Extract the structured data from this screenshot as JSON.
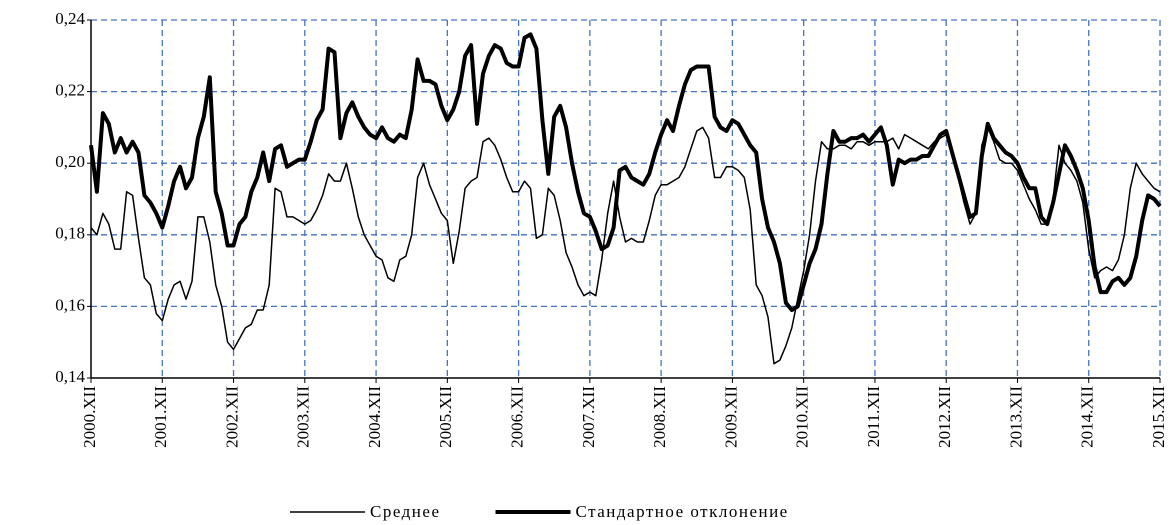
{
  "chart_data": {
    "type": "line",
    "categories": [
      "2000.XII",
      null,
      null,
      null,
      null,
      null,
      null,
      null,
      null,
      null,
      null,
      null,
      "2001.XII",
      null,
      null,
      null,
      null,
      null,
      null,
      null,
      null,
      null,
      null,
      null,
      "2002.XII",
      null,
      null,
      null,
      null,
      null,
      null,
      null,
      null,
      null,
      null,
      null,
      "2003.XII",
      null,
      null,
      null,
      null,
      null,
      null,
      null,
      null,
      null,
      null,
      null,
      "2004.XII",
      null,
      null,
      null,
      null,
      null,
      null,
      null,
      null,
      null,
      null,
      null,
      "2005.XII",
      null,
      null,
      null,
      null,
      null,
      null,
      null,
      null,
      null,
      null,
      null,
      "2006.XII",
      null,
      null,
      null,
      null,
      null,
      null,
      null,
      null,
      null,
      null,
      null,
      "2007.XII",
      null,
      null,
      null,
      null,
      null,
      null,
      null,
      null,
      null,
      null,
      null,
      "2008.XII",
      null,
      null,
      null,
      null,
      null,
      null,
      null,
      null,
      null,
      null,
      null,
      "2009.XII",
      null,
      null,
      null,
      null,
      null,
      null,
      null,
      null,
      null,
      null,
      null,
      "2010.XII",
      null,
      null,
      null,
      null,
      null,
      null,
      null,
      null,
      null,
      null,
      null,
      "2011.XII",
      null,
      null,
      null,
      null,
      null,
      null,
      null,
      null,
      null,
      null,
      null,
      "2012.XII",
      null,
      null,
      null,
      null,
      null,
      null,
      null,
      null,
      null,
      null,
      null,
      "2013.XII",
      null,
      null,
      null,
      null,
      null,
      null,
      null,
      null,
      null,
      null,
      null,
      "2014.XII",
      null,
      null,
      null,
      null,
      null,
      null,
      null,
      null,
      null,
      null,
      null,
      "2015.XII"
    ],
    "series": [
      {
        "name": "Среднее",
        "color": "#000000",
        "width": 1.5,
        "values": [
          0.182,
          0.18,
          0.186,
          0.183,
          0.176,
          0.176,
          0.192,
          0.191,
          0.179,
          0.168,
          0.166,
          0.158,
          0.156,
          0.162,
          0.166,
          0.167,
          0.162,
          0.167,
          0.185,
          0.185,
          0.178,
          0.166,
          0.16,
          0.15,
          0.148,
          0.151,
          0.154,
          0.155,
          0.159,
          0.159,
          0.166,
          0.193,
          0.192,
          0.185,
          0.185,
          0.184,
          0.183,
          0.184,
          0.187,
          0.191,
          0.197,
          0.195,
          0.195,
          0.2,
          0.193,
          0.185,
          0.18,
          0.177,
          0.174,
          0.173,
          0.168,
          0.167,
          0.173,
          0.174,
          0.18,
          0.196,
          0.2,
          0.194,
          0.19,
          0.186,
          0.184,
          0.172,
          0.181,
          0.193,
          0.195,
          0.196,
          0.206,
          0.207,
          0.205,
          0.201,
          0.196,
          0.192,
          0.192,
          0.195,
          0.193,
          0.179,
          0.18,
          0.193,
          0.191,
          0.184,
          0.175,
          0.171,
          0.166,
          0.163,
          0.164,
          0.163,
          0.173,
          0.186,
          0.195,
          0.185,
          0.178,
          0.179,
          0.178,
          0.178,
          0.184,
          0.191,
          0.194,
          0.194,
          0.195,
          0.196,
          0.199,
          0.204,
          0.209,
          0.21,
          0.207,
          0.196,
          0.196,
          0.199,
          0.199,
          0.198,
          0.196,
          0.187,
          0.166,
          0.163,
          0.157,
          0.144,
          0.145,
          0.149,
          0.154,
          0.162,
          0.17,
          0.18,
          0.195,
          0.206,
          0.204,
          0.204,
          0.205,
          0.205,
          0.204,
          0.206,
          0.206,
          0.205,
          0.206,
          0.206,
          0.206,
          0.207,
          0.204,
          0.208,
          0.207,
          0.206,
          0.205,
          0.204,
          0.206,
          0.207,
          0.208,
          0.203,
          0.196,
          0.189,
          0.183,
          0.186,
          0.205,
          0.21,
          0.206,
          0.201,
          0.2,
          0.2,
          0.198,
          0.194,
          0.19,
          0.187,
          0.183,
          0.183,
          0.19,
          0.205,
          0.2,
          0.198,
          0.195,
          0.189,
          0.176,
          0.168,
          0.17,
          0.171,
          0.17,
          0.173,
          0.18,
          0.193,
          0.2,
          0.197,
          0.195,
          0.193,
          0.192
        ]
      },
      {
        "name": "Стандартное отклонение",
        "color": "#000000",
        "width": 4,
        "values": [
          0.205,
          0.192,
          0.214,
          0.211,
          0.203,
          0.207,
          0.203,
          0.206,
          0.203,
          0.191,
          0.189,
          0.186,
          0.182,
          0.188,
          0.195,
          0.199,
          0.193,
          0.196,
          0.207,
          0.213,
          0.224,
          0.192,
          0.186,
          0.177,
          0.177,
          0.183,
          0.185,
          0.192,
          0.196,
          0.203,
          0.195,
          0.204,
          0.205,
          0.199,
          0.2,
          0.201,
          0.201,
          0.206,
          0.212,
          0.215,
          0.232,
          0.231,
          0.207,
          0.214,
          0.217,
          0.213,
          0.21,
          0.208,
          0.207,
          0.21,
          0.207,
          0.206,
          0.208,
          0.207,
          0.215,
          0.229,
          0.223,
          0.223,
          0.222,
          0.216,
          0.212,
          0.215,
          0.22,
          0.23,
          0.233,
          0.211,
          0.225,
          0.23,
          0.233,
          0.232,
          0.228,
          0.227,
          0.227,
          0.235,
          0.236,
          0.232,
          0.212,
          0.197,
          0.213,
          0.216,
          0.21,
          0.2,
          0.192,
          0.186,
          0.185,
          0.181,
          0.176,
          0.177,
          0.182,
          0.198,
          0.199,
          0.196,
          0.195,
          0.194,
          0.197,
          0.203,
          0.208,
          0.212,
          0.209,
          0.216,
          0.222,
          0.226,
          0.227,
          0.227,
          0.227,
          0.213,
          0.21,
          0.209,
          0.212,
          0.211,
          0.208,
          0.205,
          0.203,
          0.19,
          0.182,
          0.178,
          0.172,
          0.161,
          0.159,
          0.16,
          0.166,
          0.172,
          0.176,
          0.183,
          0.197,
          0.209,
          0.206,
          0.206,
          0.207,
          0.207,
          0.208,
          0.206,
          0.208,
          0.21,
          0.205,
          0.194,
          0.201,
          0.2,
          0.201,
          0.201,
          0.202,
          0.202,
          0.205,
          0.208,
          0.209,
          0.203,
          0.197,
          0.191,
          0.185,
          0.186,
          0.202,
          0.211,
          0.207,
          0.205,
          0.203,
          0.202,
          0.2,
          0.196,
          0.193,
          0.193,
          0.185,
          0.183,
          0.189,
          0.197,
          0.205,
          0.202,
          0.198,
          0.193,
          0.184,
          0.171,
          0.164,
          0.164,
          0.167,
          0.168,
          0.166,
          0.168,
          0.174,
          0.184,
          0.191,
          0.19,
          0.188
        ]
      }
    ],
    "ylim": [
      0.14,
      0.24
    ],
    "yticks": [
      {
        "value": 0.14,
        "label": "0,14"
      },
      {
        "value": 0.16,
        "label": "0,16"
      },
      {
        "value": 0.18,
        "label": "0,18"
      },
      {
        "value": 0.2,
        "label": "0,20"
      },
      {
        "value": 0.22,
        "label": "0,22"
      },
      {
        "value": 0.24,
        "label": "0,24"
      }
    ],
    "grid": true,
    "grid_color": "#4472c4",
    "legend": "bottom"
  }
}
